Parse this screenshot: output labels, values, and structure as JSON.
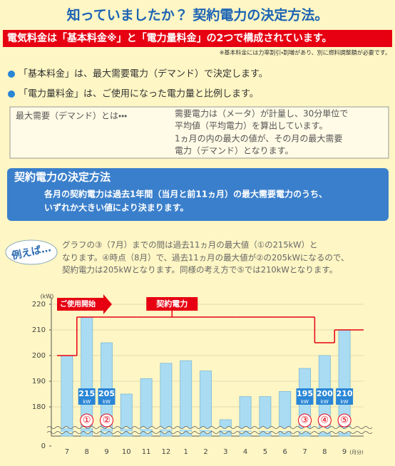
{
  "header": {
    "title": "知っていましたか？ 契約電力の決定方法。",
    "banner": "電気料金は「基本料金※」と「電力量料金」の2つで構成されています。",
    "note": "※基本料金には力率割引・割増があり、別に燃料調整額が必要です。"
  },
  "bullets": [
    "「基本料金」は、最大需要電力（デマンド）で決定します。",
    "「電力量料金」は、ご使用になった電力量と比例します。"
  ],
  "definition": {
    "term": "最大需要（デマンド）とは・・・",
    "lines": [
      "需要電力は（メータ）が計量し、30分単位で",
      "平均値（平均電力）を算出しています。",
      "1ヵ月の内の最大の値が、その月の最大需要",
      "電力（デマンド）となります。"
    ]
  },
  "method": {
    "title": "契約電力の決定方法",
    "lines": [
      "各月の契約電力は過去1年間（当月と前11ヵ月）の最大需要電力のうち、",
      "いずれか大きい値により決まります。"
    ]
  },
  "example": {
    "label": "例えば…",
    "lines": [
      "グラフの③（7月）までの間は過去11ヵ月の最大値（①の215kW）と",
      "なります。④時点（8月）で、過去11ヵ月の最大値が②の205kWになるので、",
      "契約電力は205kWとなります。同様の考え方で⑤では210kWとなります。"
    ]
  },
  "chart_data": {
    "type": "bar",
    "y_unit": "(kW)",
    "x_unit": "(月分)",
    "categories": [
      "7",
      "8",
      "9",
      "10",
      "11",
      "12",
      "1",
      "2",
      "3",
      "4",
      "5",
      "6",
      "7",
      "8",
      "9"
    ],
    "values": [
      200,
      215,
      205,
      185,
      191,
      197,
      198,
      194,
      175,
      184,
      184,
      186,
      195,
      200,
      210
    ],
    "value_labels": [
      null,
      "215",
      "205",
      null,
      null,
      null,
      null,
      null,
      null,
      null,
      null,
      null,
      "195",
      "200",
      "210"
    ],
    "value_label_unit": "kW",
    "markers": [
      null,
      "①",
      "②",
      null,
      null,
      null,
      null,
      null,
      null,
      null,
      null,
      null,
      "③",
      "④",
      "⑤"
    ],
    "color": "#a9dcf3",
    "series": [
      {
        "name": "契約電力",
        "type": "step",
        "color": "#e60012",
        "values": [
          200,
          215,
          215,
          215,
          215,
          215,
          215,
          215,
          215,
          215,
          215,
          215,
          215,
          205,
          210
        ]
      }
    ],
    "start_label": "ご使用開始",
    "ylim": [
      170,
      220
    ],
    "yticks": [
      0,
      180,
      190,
      200,
      210,
      220
    ],
    "axis_break": true,
    "grid": true
  }
}
